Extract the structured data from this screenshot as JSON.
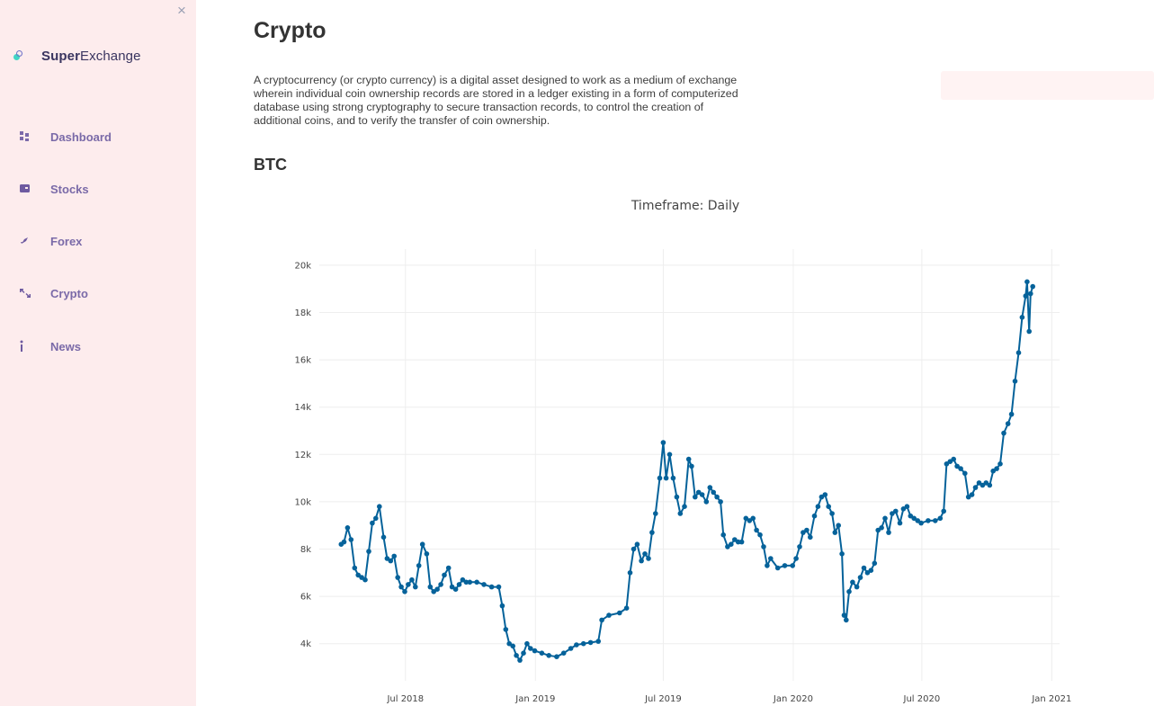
{
  "sidebar": {
    "close_glyph": "×",
    "brand": {
      "bold": "Super",
      "rest": "Exchange"
    },
    "items": [
      {
        "label": "Dashboard",
        "icon": "dashboard-icon"
      },
      {
        "label": "Stocks",
        "icon": "wallet-icon"
      },
      {
        "label": "Forex",
        "icon": "rocket-icon"
      },
      {
        "label": "Crypto",
        "icon": "exchange-arrows-icon"
      },
      {
        "label": "News",
        "icon": "info-icon"
      }
    ]
  },
  "main": {
    "title": "Crypto",
    "description": "A cryptocurrency (or crypto currency) is a digital asset designed to work as a medium of exchange wherein individual coin ownership records are stored in a ledger existing in a form of computerized database using strong cryptography to secure transaction records, to control the creation of additional coins, and to verify the transfer of coin ownership.",
    "section": "BTC"
  },
  "chart_data": {
    "type": "line",
    "title": "Timeframe: Daily",
    "xlabel": "",
    "ylabel": "",
    "marker": "circle",
    "line_color": "#05629a",
    "grid": true,
    "x_ticks": [
      "Jul 2018",
      "Jan 2019",
      "Jul 2019",
      "Jan 2020",
      "Jul 2020",
      "Jan 2021"
    ],
    "y_ticks": [
      "4k",
      "6k",
      "8k",
      "10k",
      "12k",
      "14k",
      "16k",
      "18k",
      "20k"
    ],
    "ylim": [
      3000,
      20300
    ],
    "xlim": [
      "2018-03-01",
      "2021-01-12"
    ],
    "series": [
      {
        "x": [
          "2018-04-01",
          "2018-04-05",
          "2018-04-10",
          "2018-04-15",
          "2018-04-20",
          "2018-04-25",
          "2018-04-30",
          "2018-05-05",
          "2018-05-10",
          "2018-05-15",
          "2018-05-20",
          "2018-05-25",
          "2018-05-31",
          "2018-06-05",
          "2018-06-10",
          "2018-06-15",
          "2018-06-20",
          "2018-06-25",
          "2018-06-30",
          "2018-07-05",
          "2018-07-10",
          "2018-07-15",
          "2018-07-20",
          "2018-07-25",
          "2018-07-31",
          "2018-08-05",
          "2018-08-10",
          "2018-08-15",
          "2018-08-20",
          "2018-08-25",
          "2018-08-31",
          "2018-09-05",
          "2018-09-10",
          "2018-09-15",
          "2018-09-20",
          "2018-09-25",
          "2018-09-30",
          "2018-10-10",
          "2018-10-20",
          "2018-10-31",
          "2018-11-10",
          "2018-11-15",
          "2018-11-20",
          "2018-11-25",
          "2018-11-30",
          "2018-12-05",
          "2018-12-10",
          "2018-12-15",
          "2018-12-20",
          "2018-12-25",
          "2018-12-31",
          "2019-01-10",
          "2019-01-20",
          "2019-01-31",
          "2019-02-10",
          "2019-02-20",
          "2019-02-28",
          "2019-03-10",
          "2019-03-20",
          "2019-03-31",
          "2019-04-05",
          "2019-04-15",
          "2019-04-30",
          "2019-05-10",
          "2019-05-15",
          "2019-05-20",
          "2019-05-25",
          "2019-05-31",
          "2019-06-05",
          "2019-06-10",
          "2019-06-15",
          "2019-06-20",
          "2019-06-26",
          "2019-07-01",
          "2019-07-05",
          "2019-07-10",
          "2019-07-15",
          "2019-07-20",
          "2019-07-25",
          "2019-07-31",
          "2019-08-06",
          "2019-08-10",
          "2019-08-15",
          "2019-08-20",
          "2019-08-25",
          "2019-08-31",
          "2019-09-05",
          "2019-09-10",
          "2019-09-15",
          "2019-09-20",
          "2019-09-24",
          "2019-09-30",
          "2019-10-05",
          "2019-10-10",
          "2019-10-15",
          "2019-10-20",
          "2019-10-26",
          "2019-10-31",
          "2019-11-05",
          "2019-11-10",
          "2019-11-15",
          "2019-11-20",
          "2019-11-25",
          "2019-11-30",
          "2019-12-10",
          "2019-12-20",
          "2019-12-31",
          "2020-01-05",
          "2020-01-10",
          "2020-01-15",
          "2020-01-20",
          "2020-01-25",
          "2020-01-31",
          "2020-02-05",
          "2020-02-10",
          "2020-02-15",
          "2020-02-20",
          "2020-02-25",
          "2020-02-29",
          "2020-03-05",
          "2020-03-10",
          "2020-03-13",
          "2020-03-16",
          "2020-03-20",
          "2020-03-25",
          "2020-03-31",
          "2020-04-05",
          "2020-04-10",
          "2020-04-15",
          "2020-04-20",
          "2020-04-25",
          "2020-04-30",
          "2020-05-05",
          "2020-05-10",
          "2020-05-15",
          "2020-05-20",
          "2020-05-25",
          "2020-05-31",
          "2020-06-05",
          "2020-06-10",
          "2020-06-15",
          "2020-06-20",
          "2020-06-25",
          "2020-06-30",
          "2020-07-10",
          "2020-07-20",
          "2020-07-27",
          "2020-08-01",
          "2020-08-05",
          "2020-08-10",
          "2020-08-15",
          "2020-08-20",
          "2020-08-25",
          "2020-08-31",
          "2020-09-05",
          "2020-09-10",
          "2020-09-15",
          "2020-09-20",
          "2020-09-25",
          "2020-09-30",
          "2020-10-05",
          "2020-10-10",
          "2020-10-15",
          "2020-10-20",
          "2020-10-25",
          "2020-10-31",
          "2020-11-05",
          "2020-11-10",
          "2020-11-15",
          "2020-11-20",
          "2020-11-25",
          "2020-11-27",
          "2020-11-30",
          "2020-12-02",
          "2020-12-05"
        ],
        "y": [
          8200,
          8300,
          8900,
          8400,
          7200,
          6900,
          6800,
          6700,
          7900,
          9100,
          9300,
          9800,
          8500,
          7600,
          7500,
          7700,
          6800,
          6400,
          6200,
          6500,
          6700,
          6400,
          7300,
          8200,
          7800,
          6400,
          6200,
          6300,
          6500,
          6900,
          7200,
          6400,
          6300,
          6500,
          6700,
          6600,
          6600,
          6600,
          6500,
          6400,
          6400,
          5600,
          4600,
          4000,
          3900,
          3500,
          3300,
          3600,
          4000,
          3800,
          3700,
          3600,
          3500,
          3450,
          3600,
          3800,
          3950,
          4000,
          4050,
          4100,
          5000,
          5200,
          5300,
          5500,
          7000,
          8000,
          8200,
          7500,
          7800,
          7600,
          8700,
          9500,
          11000,
          12500,
          11000,
          12000,
          11000,
          10200,
          9500,
          9800,
          11800,
          11500,
          10200,
          10400,
          10300,
          10000,
          10600,
          10400,
          10200,
          10000,
          8600,
          8100,
          8200,
          8400,
          8300,
          8300,
          9300,
          9200,
          9300,
          8800,
          8600,
          8100,
          7300,
          7600,
          7200,
          7300,
          7300,
          7600,
          8100,
          8700,
          8800,
          8500,
          9400,
          9800,
          10200,
          10300,
          9800,
          9500,
          8700,
          9000,
          7800,
          5200,
          5000,
          6200,
          6600,
          6400,
          6800,
          7200,
          7000,
          7100,
          7400,
          8800,
          8900,
          9300,
          8700,
          9500,
          9600,
          9100,
          9700,
          9800,
          9400,
          9300,
          9200,
          9100,
          9200,
          9200,
          9300,
          9600,
          11600,
          11700,
          11800,
          11500,
          11400,
          11200,
          10200,
          10300,
          10600,
          10800,
          10700,
          10800,
          10700,
          11300,
          11400,
          11600,
          12900,
          13300,
          13700,
          15100,
          16300,
          17800,
          18700,
          19300,
          17200,
          18800,
          19100
        ]
      }
    ]
  }
}
